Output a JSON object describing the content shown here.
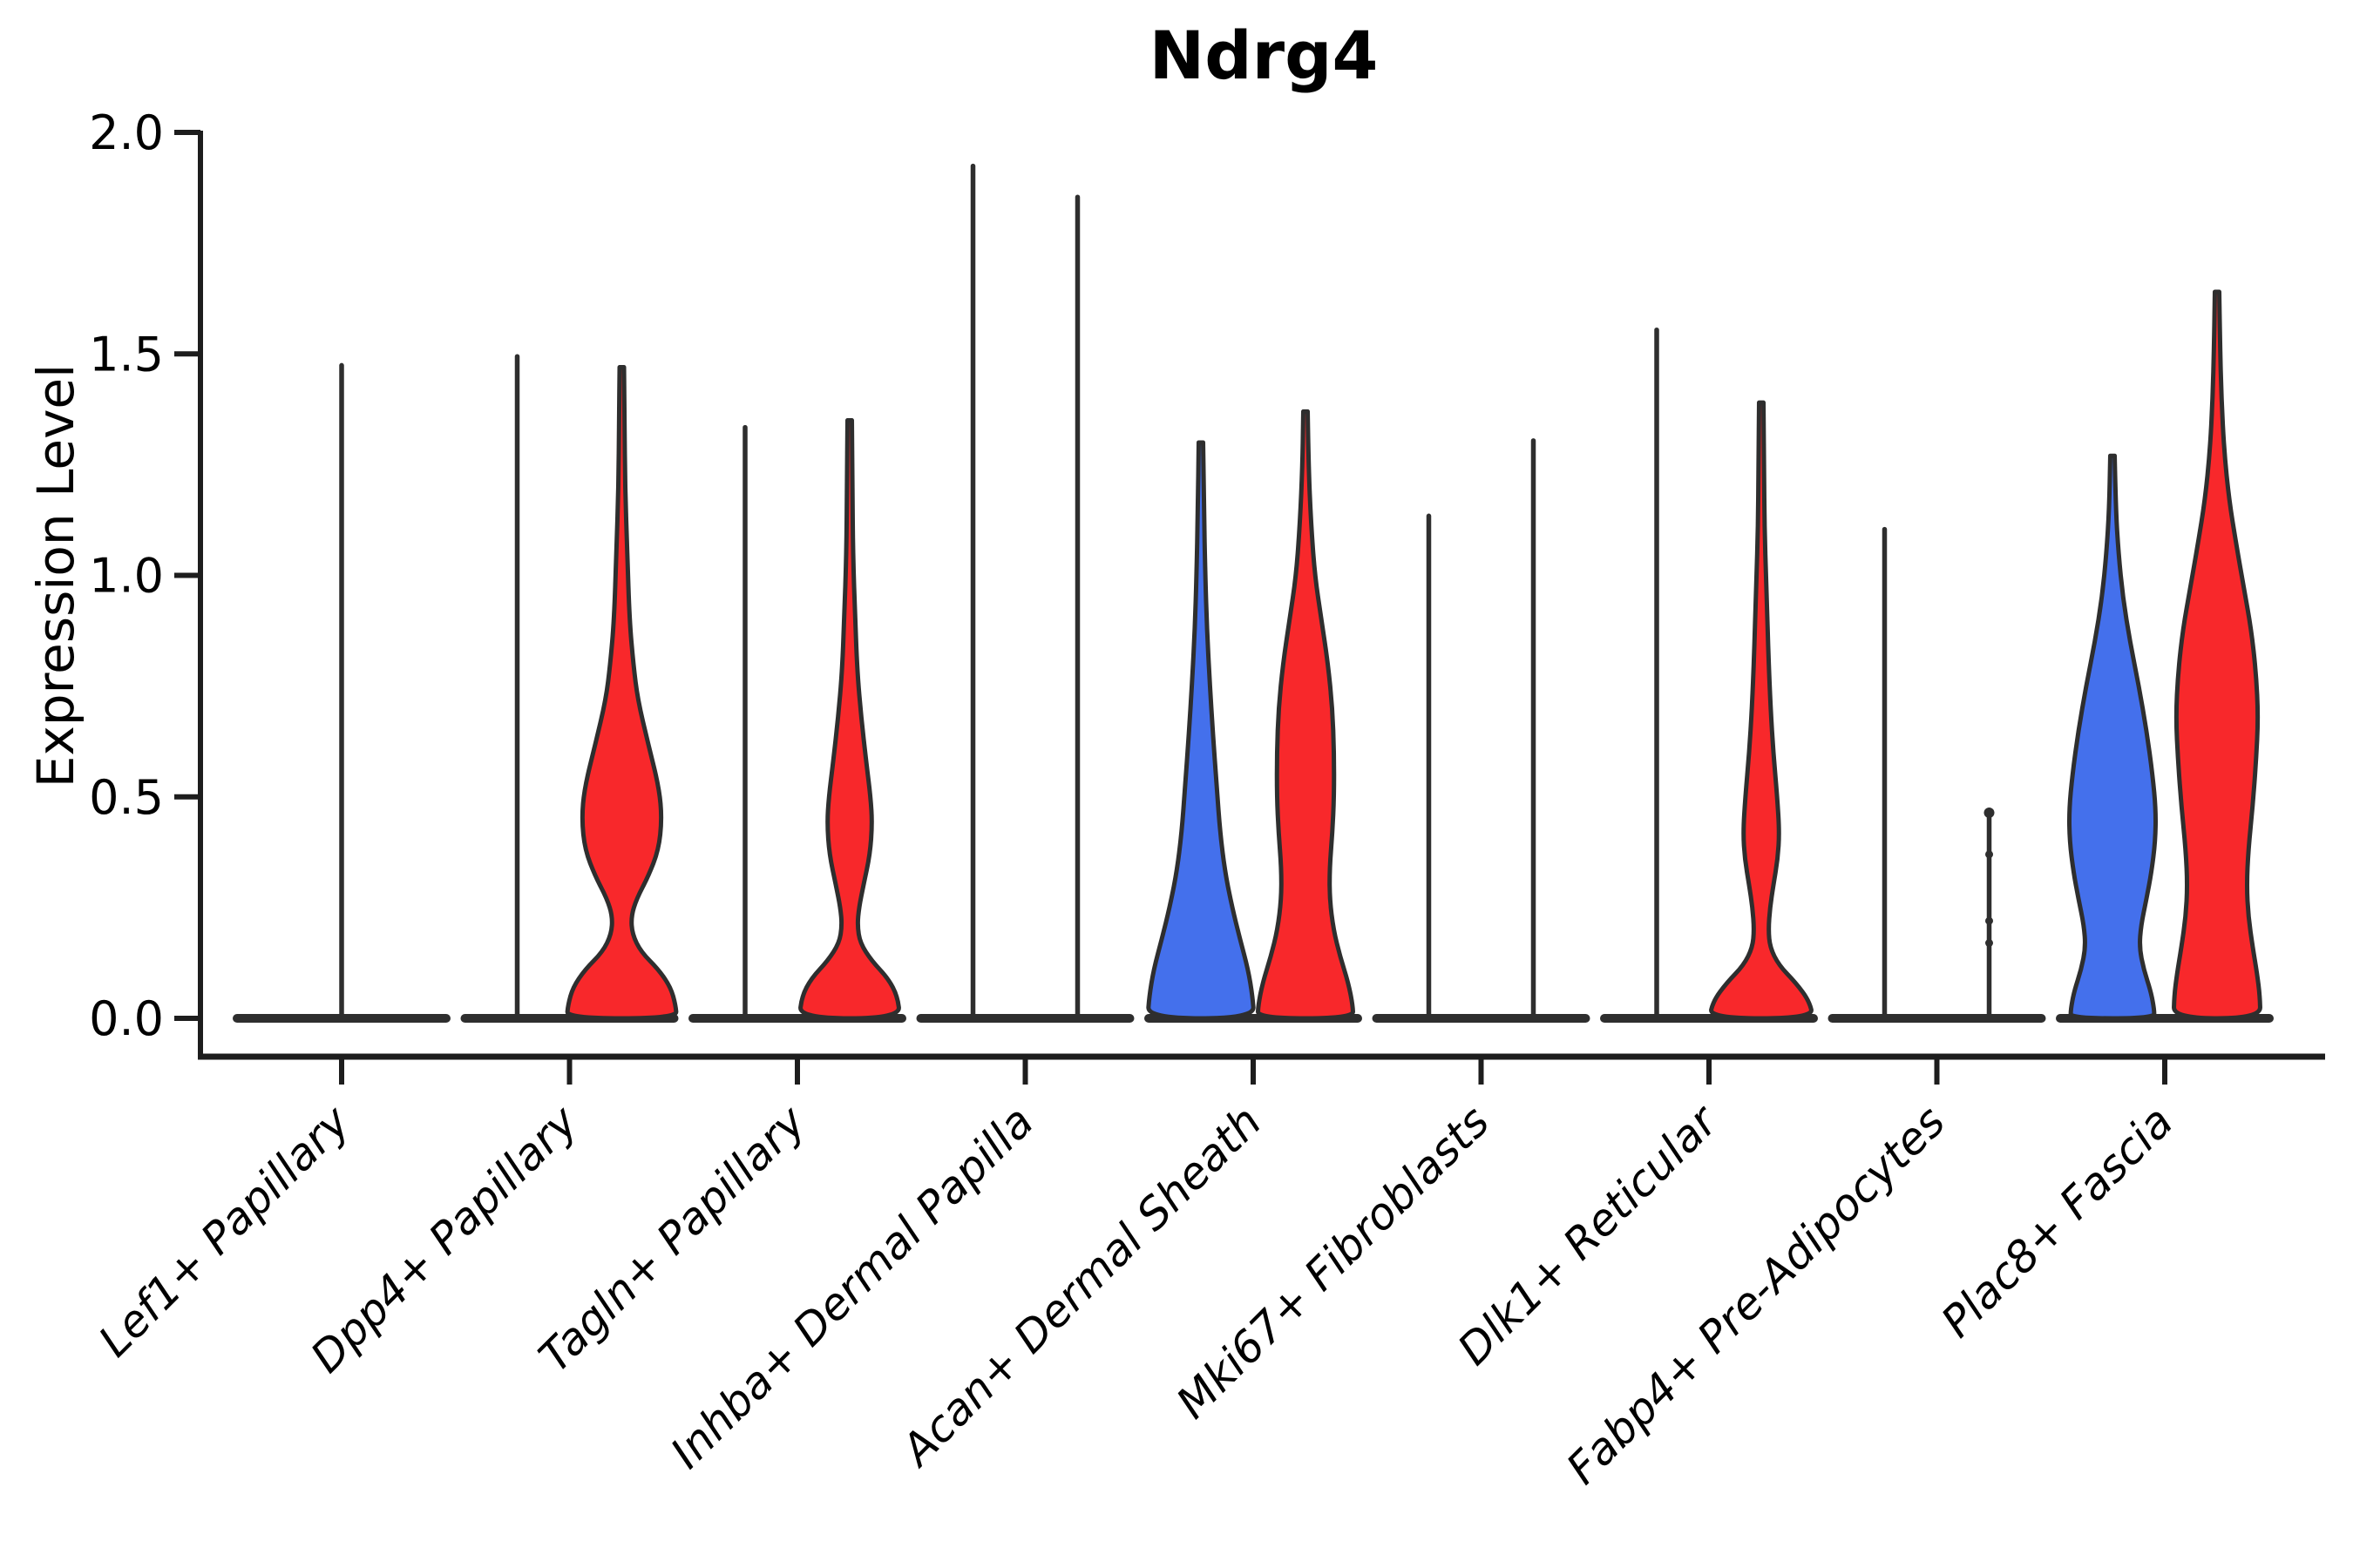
{
  "page": {
    "background": "#ffffff"
  },
  "chart_data": {
    "type": "violin",
    "title": "Ndrg4",
    "xlabel": "",
    "ylabel": "Expression Level",
    "ylim": [
      0,
      2.0
    ],
    "yticks": [
      0.0,
      0.5,
      1.0,
      1.5,
      2.0
    ],
    "ytick_labels": [
      "0.0",
      "0.5",
      "1.0",
      "1.5",
      "2.0"
    ],
    "grid": false,
    "legend_position": "none",
    "x_tick_rotation_deg": 45,
    "axis_color": "#1d1d1d",
    "outline_color": "#2e2e2e",
    "series": [
      {
        "name": "blue",
        "color": "#4470EC"
      },
      {
        "name": "red",
        "color": "#F8282B"
      }
    ],
    "categories": [
      "Lef1+ Papillary",
      "Dpp4+ Papillary",
      "Tagln+ Papillary",
      "Inhba+ Dermal Papilla",
      "Acan+ Dermal Sheath",
      "Mki67+ Fibroblasts",
      "Dlk1+ Reticular",
      "Fabp4+ Pre-Adipocytes",
      "Plac8+ Fascia"
    ],
    "groups": [
      {
        "category": "Lef1+ Papillary",
        "violins": [
          {
            "series": null,
            "position": "center",
            "kind": "spike",
            "max": 1.48
          }
        ]
      },
      {
        "category": "Dpp4+ Papillary",
        "violins": [
          {
            "series": 0,
            "position": "left",
            "kind": "spike",
            "max": 1.5
          },
          {
            "series": 1,
            "position": "right",
            "kind": "violin",
            "max": 1.47,
            "profile": [
              [
                1.47,
                0.04
              ],
              [
                1.35,
                0.05
              ],
              [
                1.2,
                0.06
              ],
              [
                1.05,
                0.1
              ],
              [
                0.9,
                0.14
              ],
              [
                0.8,
                0.21
              ],
              [
                0.72,
                0.29
              ],
              [
                0.62,
                0.48
              ],
              [
                0.52,
                0.68
              ],
              [
                0.45,
                0.73
              ],
              [
                0.38,
                0.67
              ],
              [
                0.32,
                0.48
              ],
              [
                0.27,
                0.27
              ],
              [
                0.23,
                0.17
              ],
              [
                0.19,
                0.19
              ],
              [
                0.15,
                0.35
              ],
              [
                0.11,
                0.67
              ],
              [
                0.07,
                0.89
              ],
              [
                0.03,
                0.98
              ],
              [
                0,
                1.0
              ]
            ]
          }
        ]
      },
      {
        "category": "Tagln+ Papillary",
        "violins": [
          {
            "series": 0,
            "position": "left",
            "kind": "spike",
            "max": 1.34
          },
          {
            "series": 1,
            "position": "right",
            "kind": "violin",
            "max": 1.35,
            "profile": [
              [
                1.35,
                0.04
              ],
              [
                1.2,
                0.05
              ],
              [
                1.05,
                0.06
              ],
              [
                0.9,
                0.1
              ],
              [
                0.78,
                0.14
              ],
              [
                0.68,
                0.21
              ],
              [
                0.58,
                0.3
              ],
              [
                0.5,
                0.38
              ],
              [
                0.44,
                0.41
              ],
              [
                0.37,
                0.37
              ],
              [
                0.3,
                0.25
              ],
              [
                0.25,
                0.17
              ],
              [
                0.21,
                0.14
              ],
              [
                0.17,
                0.19
              ],
              [
                0.13,
                0.4
              ],
              [
                0.09,
                0.7
              ],
              [
                0.05,
                0.87
              ],
              [
                0,
                0.92
              ]
            ]
          }
        ]
      },
      {
        "category": "Inhba+ Dermal Papilla",
        "violins": [
          {
            "series": 0,
            "position": "left",
            "kind": "spike",
            "max": 1.93
          },
          {
            "series": 1,
            "position": "right",
            "kind": "spike",
            "max": 1.86
          }
        ]
      },
      {
        "category": "Acan+ Dermal Sheath",
        "violins": [
          {
            "series": 0,
            "position": "left",
            "kind": "violin",
            "max": 1.3,
            "profile": [
              [
                1.3,
                0.04
              ],
              [
                1.15,
                0.055
              ],
              [
                1.0,
                0.08
              ],
              [
                0.88,
                0.11
              ],
              [
                0.76,
                0.16
              ],
              [
                0.64,
                0.22
              ],
              [
                0.52,
                0.29
              ],
              [
                0.42,
                0.35
              ],
              [
                0.33,
                0.44
              ],
              [
                0.25,
                0.57
              ],
              [
                0.18,
                0.71
              ],
              [
                0.11,
                0.86
              ],
              [
                0.05,
                0.94
              ],
              [
                0,
                0.97
              ]
            ]
          },
          {
            "series": 1,
            "position": "right",
            "kind": "violin",
            "max": 1.37,
            "profile": [
              [
                1.37,
                0.04
              ],
              [
                1.25,
                0.055
              ],
              [
                1.12,
                0.1
              ],
              [
                1.0,
                0.17
              ],
              [
                0.9,
                0.29
              ],
              [
                0.8,
                0.41
              ],
              [
                0.7,
                0.49
              ],
              [
                0.6,
                0.52
              ],
              [
                0.5,
                0.52
              ],
              [
                0.42,
                0.49
              ],
              [
                0.34,
                0.44
              ],
              [
                0.27,
                0.44
              ],
              [
                0.2,
                0.51
              ],
              [
                0.14,
                0.63
              ],
              [
                0.08,
                0.78
              ],
              [
                0.03,
                0.86
              ],
              [
                0,
                0.87
              ]
            ]
          }
        ]
      },
      {
        "category": "Mki67+ Fibroblasts",
        "violins": [
          {
            "series": 0,
            "position": "left",
            "kind": "spike",
            "max": 1.14
          },
          {
            "series": 1,
            "position": "right",
            "kind": "spike",
            "max": 1.31
          }
        ]
      },
      {
        "category": "Dlk1+ Reticular",
        "violins": [
          {
            "series": 0,
            "position": "left",
            "kind": "spike",
            "max": 1.56
          },
          {
            "series": 1,
            "position": "right",
            "kind": "violin",
            "max": 1.39,
            "profile": [
              [
                1.39,
                0.04
              ],
              [
                1.25,
                0.05
              ],
              [
                1.1,
                0.06
              ],
              [
                0.95,
                0.1
              ],
              [
                0.82,
                0.13
              ],
              [
                0.7,
                0.17
              ],
              [
                0.6,
                0.22
              ],
              [
                0.5,
                0.29
              ],
              [
                0.42,
                0.33
              ],
              [
                0.36,
                0.3
              ],
              [
                0.3,
                0.22
              ],
              [
                0.25,
                0.16
              ],
              [
                0.2,
                0.13
              ],
              [
                0.16,
                0.16
              ],
              [
                0.12,
                0.32
              ],
              [
                0.08,
                0.63
              ],
              [
                0.04,
                0.87
              ],
              [
                0,
                0.95
              ]
            ]
          }
        ]
      },
      {
        "category": "Fabp4+ Pre-Adipocytes",
        "violins": [
          {
            "series": 0,
            "position": "left",
            "kind": "spike",
            "max": 1.11
          },
          {
            "series": 1,
            "position": "right",
            "kind": "spike",
            "max": 0.47,
            "dots": [
              0.37,
              0.22,
              0.17
            ]
          }
        ]
      },
      {
        "category": "Plac8+ Fascia",
        "violins": [
          {
            "series": 0,
            "position": "left",
            "kind": "violin",
            "max": 1.27,
            "profile": [
              [
                1.27,
                0.04
              ],
              [
                1.15,
                0.06
              ],
              [
                1.05,
                0.11
              ],
              [
                0.95,
                0.19
              ],
              [
                0.85,
                0.32
              ],
              [
                0.75,
                0.48
              ],
              [
                0.65,
                0.62
              ],
              [
                0.55,
                0.73
              ],
              [
                0.47,
                0.79
              ],
              [
                0.4,
                0.78
              ],
              [
                0.33,
                0.71
              ],
              [
                0.27,
                0.62
              ],
              [
                0.21,
                0.52
              ],
              [
                0.16,
                0.49
              ],
              [
                0.11,
                0.57
              ],
              [
                0.06,
                0.7
              ],
              [
                0.02,
                0.76
              ],
              [
                0,
                0.76
              ]
            ]
          },
          {
            "series": 1,
            "position": "right",
            "kind": "violin",
            "max": 1.64,
            "profile": [
              [
                1.64,
                0.04
              ],
              [
                1.52,
                0.055
              ],
              [
                1.4,
                0.08
              ],
              [
                1.28,
                0.13
              ],
              [
                1.17,
                0.22
              ],
              [
                1.07,
                0.35
              ],
              [
                0.97,
                0.49
              ],
              [
                0.88,
                0.62
              ],
              [
                0.78,
                0.71
              ],
              [
                0.68,
                0.75
              ],
              [
                0.58,
                0.71
              ],
              [
                0.48,
                0.65
              ],
              [
                0.38,
                0.57
              ],
              [
                0.3,
                0.54
              ],
              [
                0.23,
                0.57
              ],
              [
                0.16,
                0.65
              ],
              [
                0.1,
                0.73
              ],
              [
                0.05,
                0.78
              ],
              [
                0,
                0.79
              ]
            ]
          }
        ]
      }
    ]
  }
}
